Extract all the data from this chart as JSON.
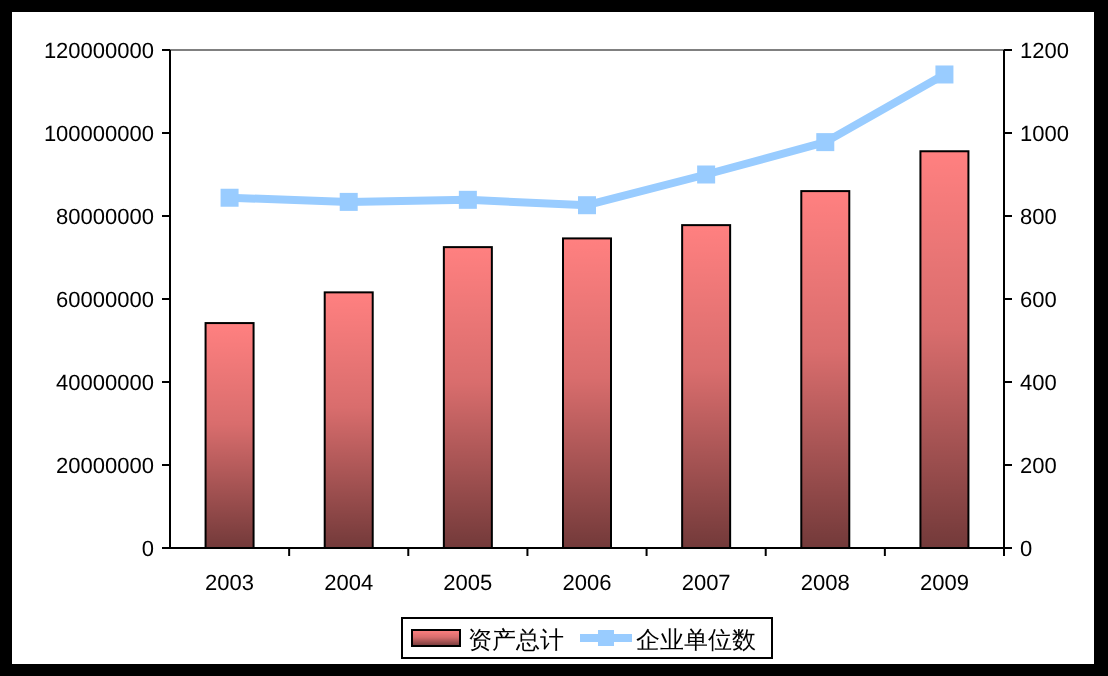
{
  "chart_data": {
    "type": "bar",
    "categories": [
      "2003",
      "2004",
      "2005",
      "2006",
      "2007",
      "2008",
      "2009"
    ],
    "series": [
      {
        "name": "资产总计",
        "color": "#ff8080",
        "values": [
          54200000,
          61600000,
          72500000,
          74600000,
          77800000,
          86000000,
          95600000
        ]
      },
      {
        "name": "企业单位数",
        "type": "line",
        "axis": "y2",
        "color": "#99ccff",
        "values": [
          844,
          834,
          839,
          826,
          900,
          978,
          1141
        ]
      }
    ],
    "ylim": [
      0,
      120000000
    ],
    "yticks": [
      0,
      20000000,
      40000000,
      60000000,
      80000000,
      100000000,
      120000000
    ],
    "y2lim": [
      0,
      1200
    ],
    "y2ticks": [
      0,
      200,
      400,
      600,
      800,
      1000,
      1200
    ],
    "grid": false,
    "legend": "bottom",
    "marker": "square",
    "line_style": "solid"
  }
}
